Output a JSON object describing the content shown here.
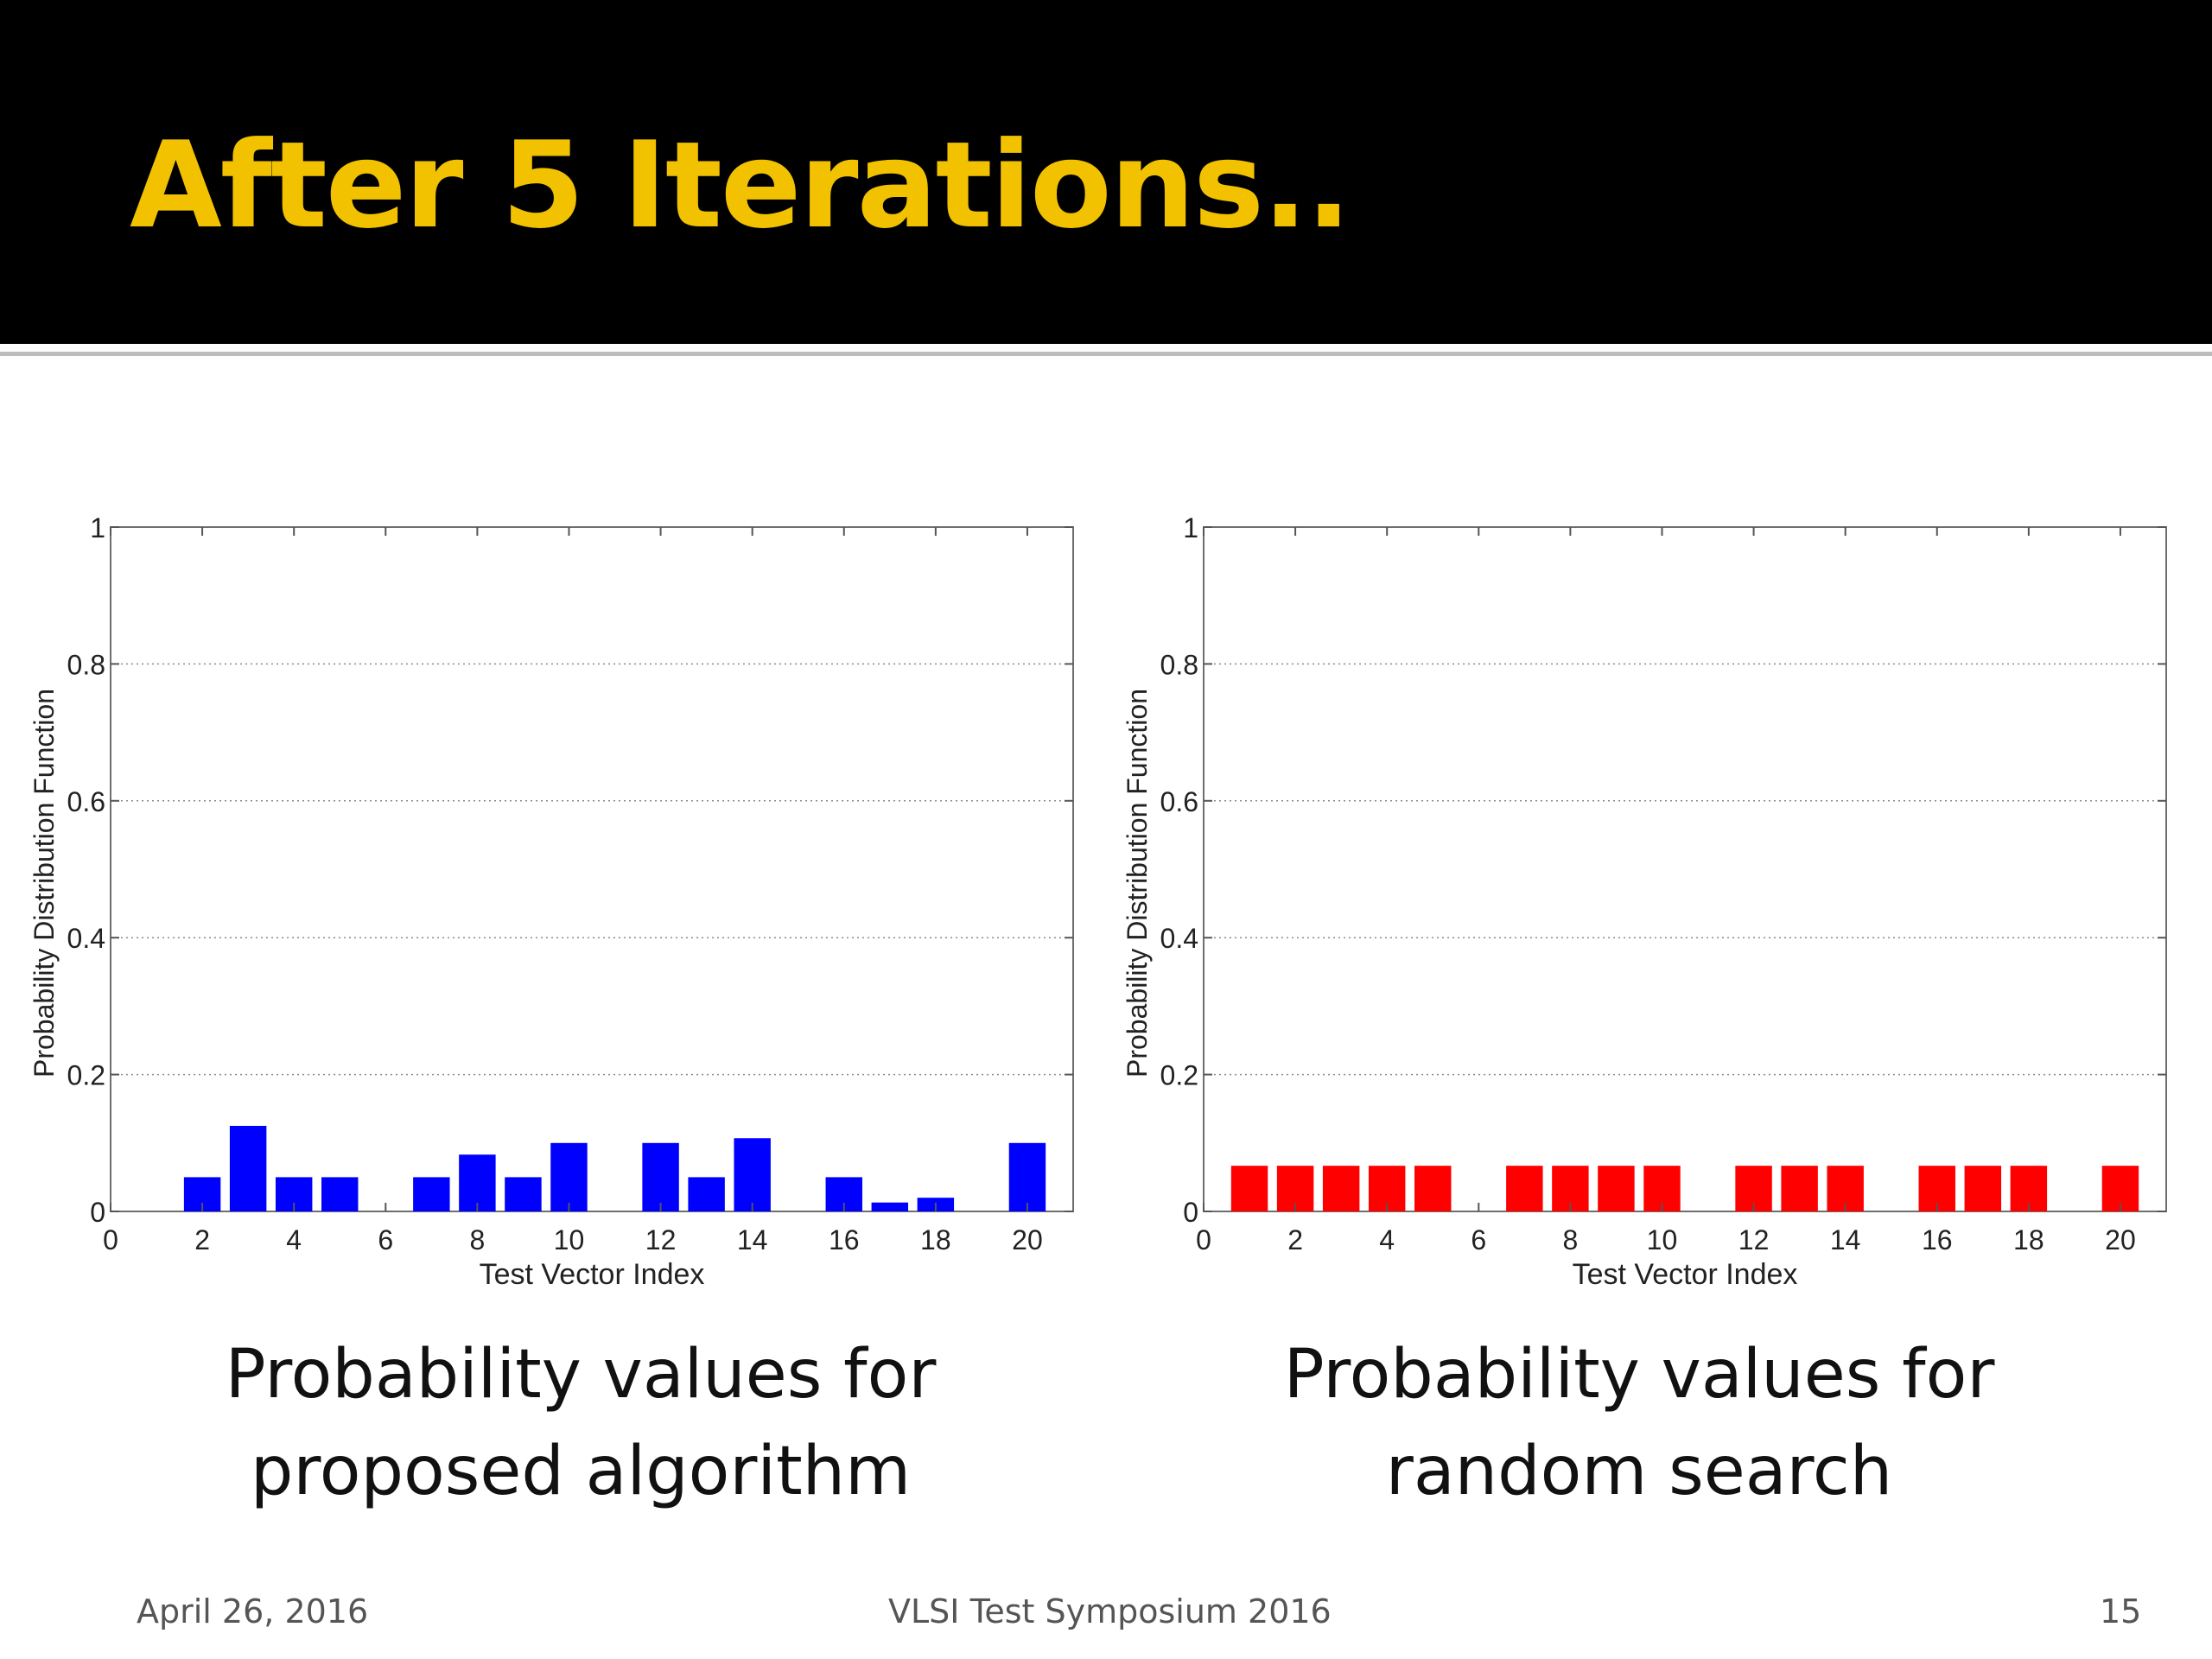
{
  "slide": {
    "title": "After 5 Iterations..",
    "captions": [
      [
        "Probability values for",
        "proposed algorithm"
      ],
      [
        "Probability values for",
        "random search"
      ]
    ],
    "footer": {
      "date": "April 26, 2016",
      "venue": "VLSI Test Symposium 2016",
      "page": "15"
    }
  },
  "chart_data": [
    {
      "type": "bar",
      "title": "",
      "xlabel": "Test Vector Index",
      "ylabel": "Probability Distribution Function",
      "xlim": [
        0,
        21
      ],
      "ylim": [
        0,
        1
      ],
      "x_ticks": [
        0,
        2,
        4,
        6,
        8,
        10,
        12,
        14,
        16,
        18,
        20
      ],
      "y_ticks": [
        0,
        0.2,
        0.4,
        0.6,
        0.8,
        1
      ],
      "y_tick_labels": [
        "0",
        "0.2",
        "0.4",
        "0.6",
        "0.8",
        "1"
      ],
      "grid": "horizontal-dotted",
      "bar_color": "#0000ff",
      "x": [
        1,
        2,
        3,
        4,
        5,
        6,
        7,
        8,
        9,
        10,
        11,
        12,
        13,
        14,
        15,
        16,
        17,
        18,
        19,
        20
      ],
      "values": [
        0,
        0.05,
        0.125,
        0.05,
        0.05,
        0,
        0.05,
        0.083,
        0.05,
        0.1,
        0,
        0.1,
        0.05,
        0.107,
        0,
        0.05,
        0.013,
        0.02,
        0,
        0.1
      ]
    },
    {
      "type": "bar",
      "title": "",
      "xlabel": "Test Vector Index",
      "ylabel": "Probability Distribution Function",
      "xlim": [
        0,
        21
      ],
      "ylim": [
        0,
        1
      ],
      "x_ticks": [
        0,
        2,
        4,
        6,
        8,
        10,
        12,
        14,
        16,
        18,
        20
      ],
      "y_ticks": [
        0,
        0.2,
        0.4,
        0.6,
        0.8,
        1
      ],
      "y_tick_labels": [
        "0",
        "0.2",
        "0.4",
        "0.6",
        "0.8",
        "1"
      ],
      "grid": "horizontal-dotted",
      "bar_color": "#ff0000",
      "x": [
        1,
        2,
        3,
        4,
        5,
        6,
        7,
        8,
        9,
        10,
        11,
        12,
        13,
        14,
        15,
        16,
        17,
        18,
        19,
        20
      ],
      "values": [
        0.0667,
        0.0667,
        0.0667,
        0.0667,
        0.0667,
        0,
        0.0667,
        0.0667,
        0.0667,
        0.0667,
        0,
        0.0667,
        0.0667,
        0.0667,
        0,
        0.0667,
        0.0667,
        0.0667,
        0,
        0.0667
      ]
    }
  ]
}
